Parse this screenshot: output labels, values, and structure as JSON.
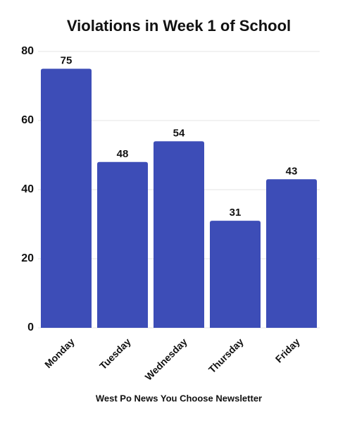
{
  "chart_data": {
    "type": "bar",
    "title": "Violations in Week 1 of School",
    "categories": [
      "Monday",
      "Tuesday",
      "Wednesday",
      "Thursday",
      "Friday"
    ],
    "values": [
      75,
      48,
      54,
      31,
      43
    ],
    "color": "#3d4db7",
    "ylim": [
      0,
      80
    ],
    "yticks": [
      0,
      20,
      40,
      60,
      80
    ],
    "grid": true,
    "xlabel": "West Po News You Choose Newsletter"
  }
}
